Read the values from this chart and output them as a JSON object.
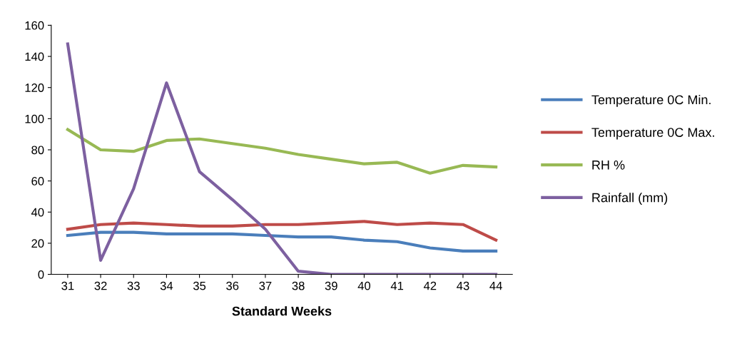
{
  "chart_data": {
    "type": "line",
    "xlabel": "Standard Weeks",
    "categories": [
      "31",
      "32",
      "33",
      "34",
      "35",
      "36",
      "37",
      "38",
      "39",
      "40",
      "41",
      "42",
      "43",
      "44"
    ],
    "series": [
      {
        "name": "Temperature 0C Min.",
        "color": "#4a7ebb",
        "values": [
          25,
          27,
          27,
          26,
          26,
          26,
          25,
          24,
          24,
          22,
          21,
          17,
          15,
          15
        ]
      },
      {
        "name": "Temperature 0C Max.",
        "color": "#be4b48",
        "values": [
          29,
          32,
          33,
          32,
          31,
          31,
          32,
          32,
          33,
          34,
          32,
          33,
          32,
          22
        ]
      },
      {
        "name": "RH %",
        "color": "#98b954",
        "values": [
          93,
          80,
          79,
          86,
          87,
          84,
          81,
          77,
          74,
          71,
          72,
          65,
          70,
          69
        ]
      },
      {
        "name": "Rainfall (mm)",
        "color": "#7d60a0",
        "values": [
          148,
          9,
          55,
          123,
          66,
          48,
          29,
          2,
          0,
          0,
          0,
          0,
          0,
          0
        ]
      }
    ],
    "ylim": [
      0,
      160
    ],
    "yticks": [
      0,
      20,
      40,
      60,
      80,
      100,
      120,
      140,
      160
    ],
    "grid": false,
    "legend": "right"
  }
}
